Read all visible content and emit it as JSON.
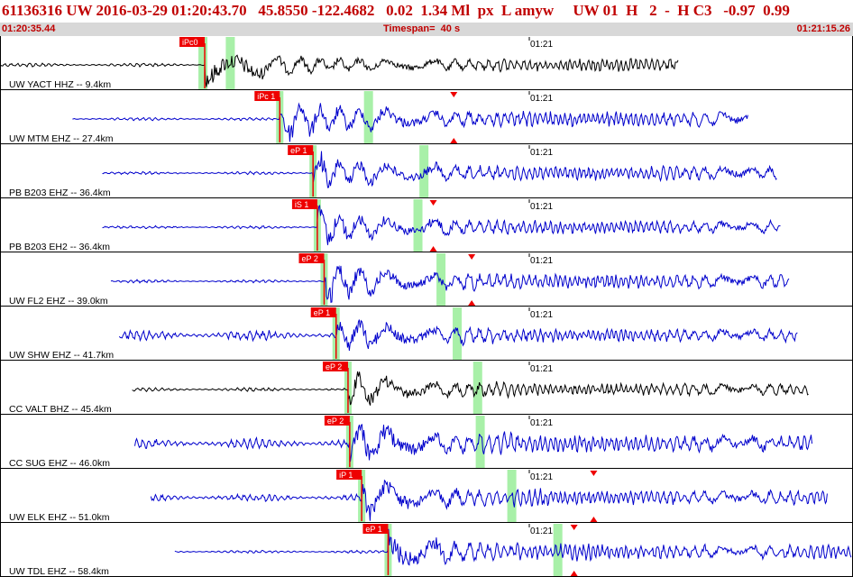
{
  "header": {
    "title": "61136316 UW 2016-03-29 01:20:43.70   45.8550 -122.4682   0.02  1.34 Ml  px  L amyw     UW 01  H   2  -  H C3   -0.97  0.99",
    "start_time": "01:20:35.44",
    "timespan": "Timespan=  40 s",
    "end_time": "01:21:15.26"
  },
  "colors": {
    "header_text": "#c00000",
    "trace_blue": "#0000cc",
    "trace_black": "#000000",
    "pick_red": "#ee0000",
    "window_green": "#a8f0a8",
    "status_bg": "#d8d8d8"
  },
  "traces": [
    {
      "label": "UW YACT HHZ -- 9.4km",
      "pick": "iPc0",
      "time_label": "01:21",
      "color": "black",
      "p": 0.24,
      "s": 0.27,
      "start": 0.0,
      "end": 0.795,
      "amp": 22,
      "noise": 1.5,
      "extra": null
    },
    {
      "label": "UW MTM EHZ -- 27.4km",
      "pick": "iPc 1",
      "time_label": "01:21",
      "color": "blue",
      "p": 0.328,
      "s": 0.432,
      "start": 0.085,
      "end": 0.877,
      "amp": 26,
      "noise": 1.2,
      "extra": 0.532
    },
    {
      "label": "PB B203 EHZ -- 36.4km",
      "pick": "eP 1",
      "time_label": "01:21",
      "color": "blue",
      "p": 0.367,
      "s": 0.497,
      "start": 0.12,
      "end": 0.911,
      "amp": 24,
      "noise": 1.2,
      "extra": null
    },
    {
      "label": "PB B203 EH2 -- 36.4km",
      "pick": "iS 1",
      "time_label": "01:21",
      "color": "blue",
      "p": 0.372,
      "s": 0.49,
      "start": 0.12,
      "end": 0.915,
      "amp": 22,
      "noise": 1.2,
      "extra": 0.508
    },
    {
      "label": "UW FL2 EHZ -- 39.0km",
      "pick": "eP 2",
      "time_label": "01:21",
      "color": "blue",
      "p": 0.38,
      "s": 0.517,
      "start": 0.13,
      "end": 0.925,
      "amp": 24,
      "noise": 1.2,
      "extra": 0.553
    },
    {
      "label": "UW SHW EHZ -- 41.7km",
      "pick": "eP 1",
      "time_label": "01:21",
      "color": "blue",
      "p": 0.394,
      "s": 0.536,
      "start": 0.14,
      "end": 0.935,
      "amp": 22,
      "noise": 4,
      "extra": null
    },
    {
      "label": "CC VALT BHZ -- 45.4km",
      "pick": "eP 2",
      "time_label": "01:21",
      "color": "black",
      "p": 0.408,
      "s": 0.56,
      "start": 0.155,
      "end": 0.948,
      "amp": 20,
      "noise": 1.5,
      "extra": null
    },
    {
      "label": "CC SUG EHZ -- 46.0km",
      "pick": "eP 2",
      "time_label": "01:21",
      "color": "blue",
      "p": 0.41,
      "s": 0.563,
      "start": 0.158,
      "end": 0.952,
      "amp": 28,
      "noise": 4,
      "extra": null
    },
    {
      "label": "UW ELK EHZ -- 51.0km",
      "pick": "iP 1",
      "time_label": "01:21",
      "color": "blue",
      "p": 0.424,
      "s": 0.6,
      "start": 0.177,
      "end": 0.97,
      "amp": 24,
      "noise": 3,
      "extra": 0.696
    },
    {
      "label": "UW TDL EHZ -- 58.4km",
      "pick": "eP 1",
      "time_label": "01:21",
      "color": "blue",
      "p": 0.455,
      "s": 0.654,
      "start": 0.205,
      "end": 1.0,
      "amp": 24,
      "noise": 1.2,
      "extra": 0.673
    }
  ]
}
